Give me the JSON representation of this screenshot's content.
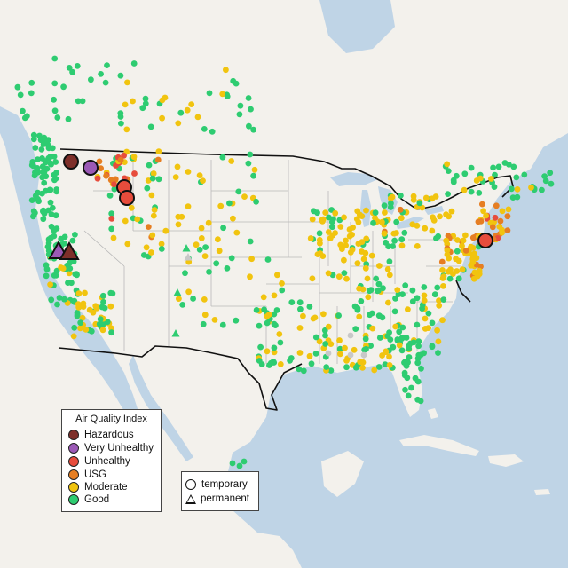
{
  "legend": {
    "title": "Air Quality Index",
    "categories": [
      {
        "label": "Hazardous",
        "color": "#7e2f2a"
      },
      {
        "label": "Very Unhealthy",
        "color": "#9b59b6"
      },
      {
        "label": "Unhealthy",
        "color": "#e74c3c"
      },
      {
        "label": "USG",
        "color": "#e67e22"
      },
      {
        "label": "Moderate",
        "color": "#f1c40f"
      },
      {
        "label": "Good",
        "color": "#2ecc71"
      }
    ]
  },
  "monitor_types": {
    "items": [
      {
        "label": "temporary",
        "shape": "circle-outline-icon"
      },
      {
        "label": "permanent",
        "shape": "triangle-outline-icon"
      }
    ]
  },
  "colors": {
    "land": "#f3f1ec",
    "water": "#bfd4e6",
    "state_borders": "#b9b9b9",
    "country_border": "#111111",
    "no_data": "#c8c8c8"
  }
}
